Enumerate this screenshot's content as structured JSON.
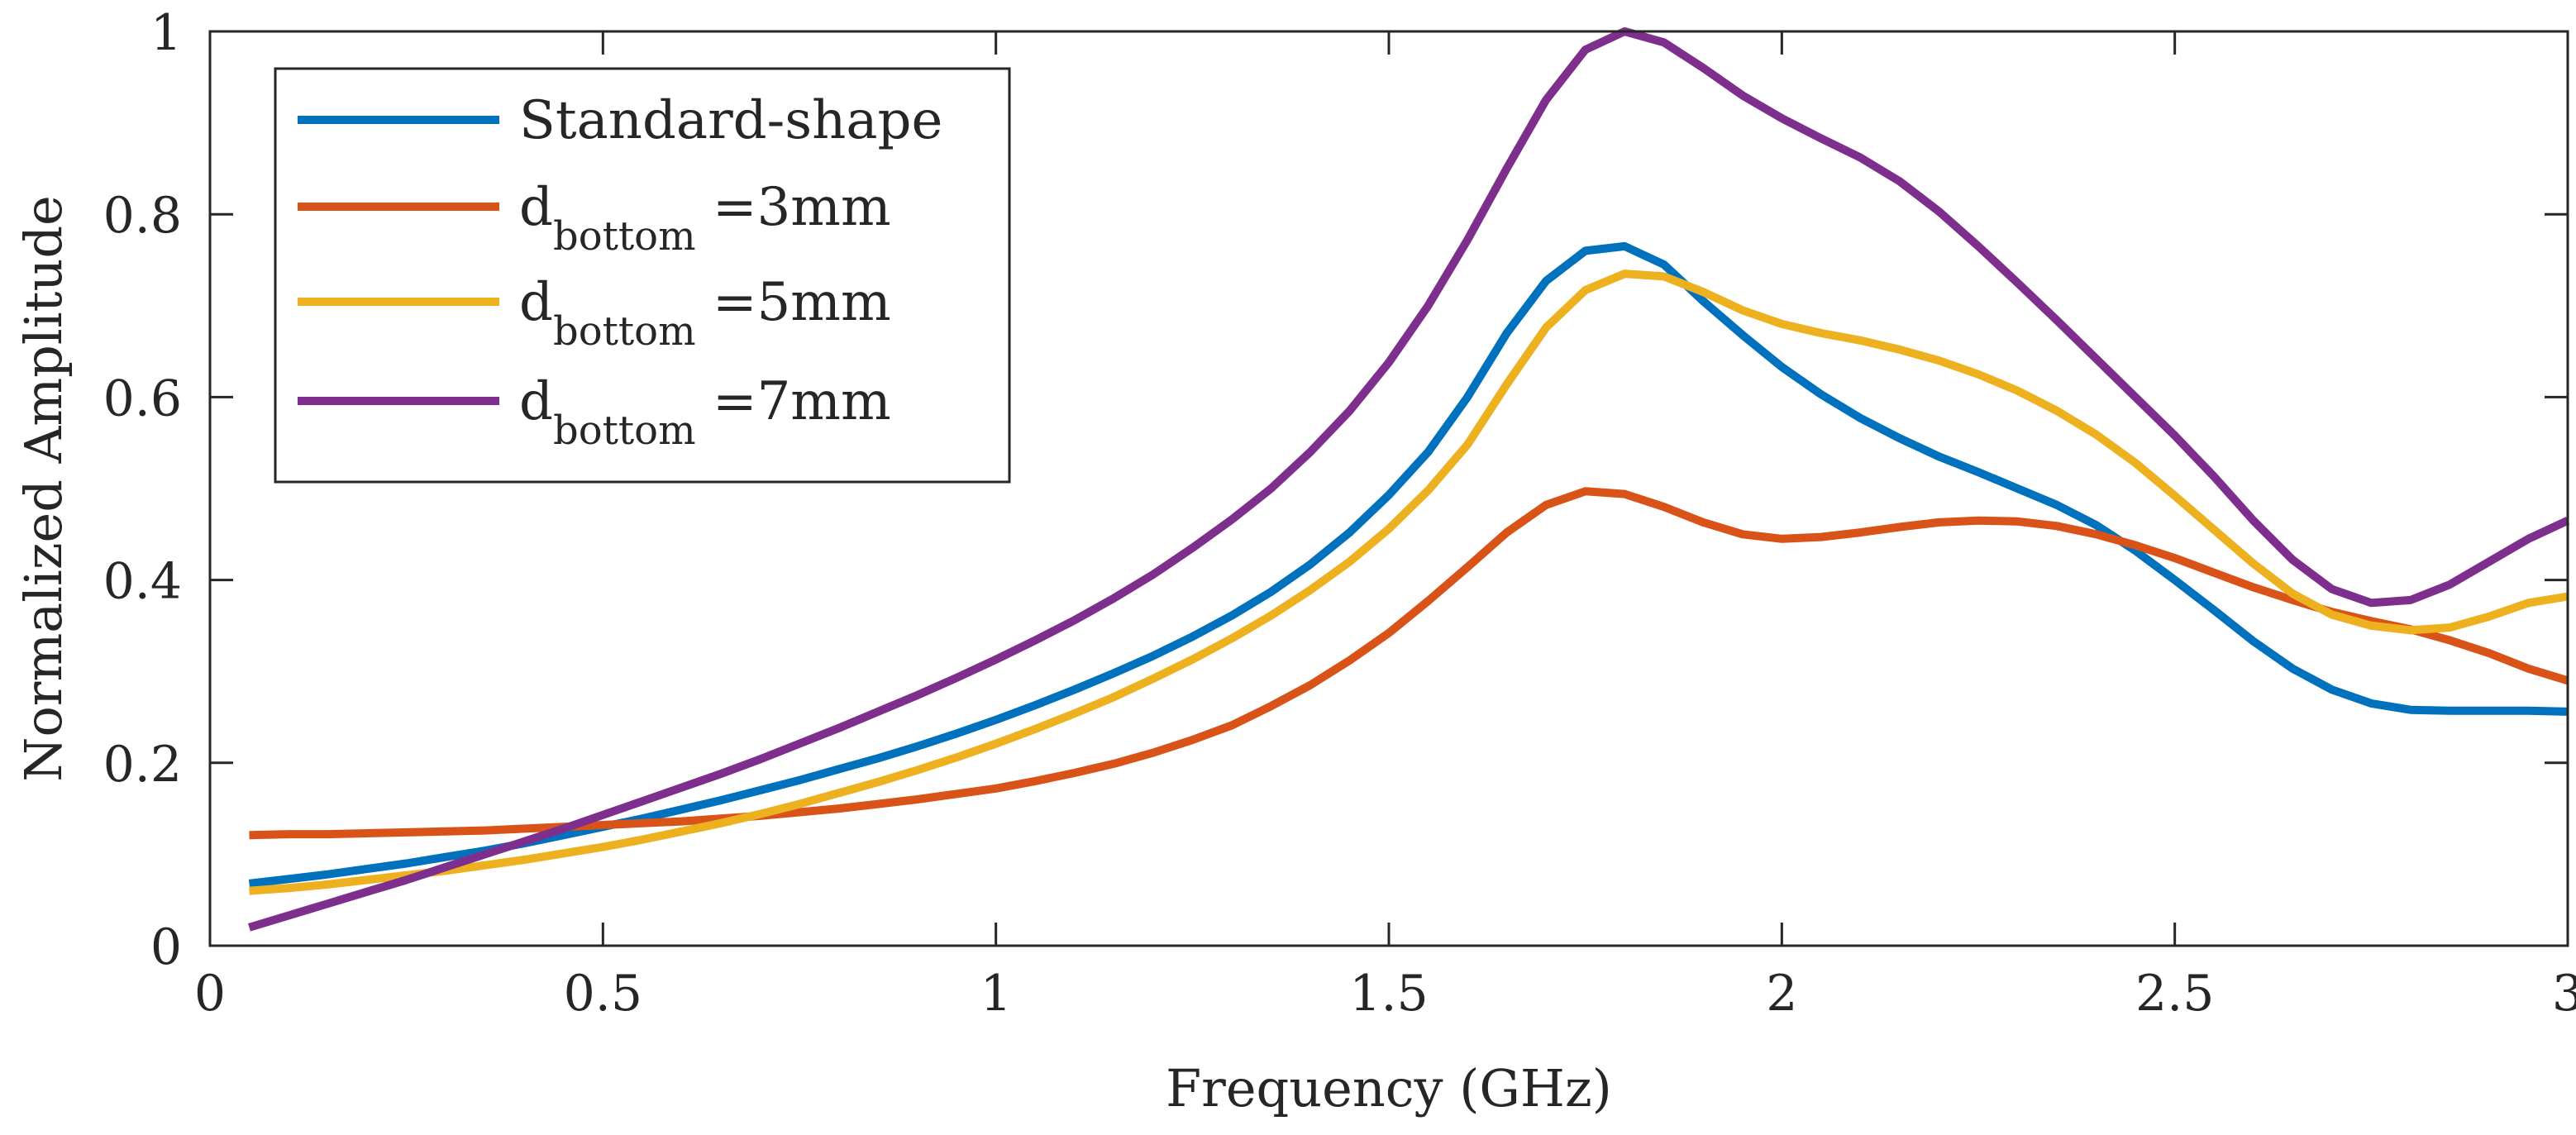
{
  "chart_data": {
    "type": "line",
    "title": "",
    "xlabel": "Frequency (GHz)",
    "ylabel": "Normalized Amplitude",
    "xlim": [
      0,
      3
    ],
    "ylim": [
      0,
      1
    ],
    "grid": false,
    "legend_position": "top-left",
    "x_ticks": [
      "0",
      "0.5",
      "1",
      "1.5",
      "2",
      "2.5",
      "3"
    ],
    "y_ticks": [
      "0",
      "0.2",
      "0.4",
      "0.6",
      "0.8",
      "1"
    ],
    "x": [
      0.05,
      0.1,
      0.15,
      0.2,
      0.25,
      0.3,
      0.35,
      0.4,
      0.45,
      0.5,
      0.55,
      0.6,
      0.65,
      0.7,
      0.75,
      0.8,
      0.85,
      0.9,
      0.95,
      1.0,
      1.05,
      1.1,
      1.15,
      1.2,
      1.25,
      1.3,
      1.35,
      1.4,
      1.45,
      1.5,
      1.55,
      1.6,
      1.65,
      1.7,
      1.75,
      1.8,
      1.85,
      1.9,
      1.95,
      2.0,
      2.05,
      2.1,
      2.15,
      2.2,
      2.25,
      2.3,
      2.35,
      2.4,
      2.45,
      2.5,
      2.55,
      2.6,
      2.65,
      2.7,
      2.75,
      2.8,
      2.85,
      2.9,
      2.95,
      3.0
    ],
    "series": [
      {
        "name": "Standard-shape",
        "legend_main": "Standard-shape",
        "legend_sub": "",
        "legend_suffix": "",
        "color": "#0072BD",
        "values": [
          0.068,
          0.073,
          0.078,
          0.084,
          0.09,
          0.097,
          0.104,
          0.112,
          0.121,
          0.13,
          0.139,
          0.149,
          0.159,
          0.17,
          0.181,
          0.193,
          0.205,
          0.218,
          0.232,
          0.247,
          0.263,
          0.28,
          0.298,
          0.317,
          0.338,
          0.361,
          0.387,
          0.417,
          0.452,
          0.493,
          0.54,
          0.6,
          0.67,
          0.727,
          0.76,
          0.765,
          0.745,
          0.705,
          0.668,
          0.633,
          0.603,
          0.577,
          0.555,
          0.535,
          0.518,
          0.5,
          0.482,
          0.46,
          0.432,
          0.4,
          0.367,
          0.333,
          0.303,
          0.28,
          0.265,
          0.258,
          0.257,
          0.257,
          0.257,
          0.256
        ]
      },
      {
        "name": "d_bottom =3mm",
        "legend_main": "d",
        "legend_sub": "bottom",
        "legend_suffix": " =3mm",
        "color": "#D95319",
        "values": [
          0.121,
          0.122,
          0.122,
          0.123,
          0.124,
          0.125,
          0.126,
          0.128,
          0.13,
          0.132,
          0.134,
          0.136,
          0.139,
          0.142,
          0.146,
          0.15,
          0.155,
          0.16,
          0.166,
          0.172,
          0.18,
          0.189,
          0.199,
          0.211,
          0.225,
          0.241,
          0.262,
          0.285,
          0.312,
          0.342,
          0.377,
          0.414,
          0.452,
          0.482,
          0.497,
          0.494,
          0.48,
          0.463,
          0.45,
          0.445,
          0.447,
          0.452,
          0.458,
          0.463,
          0.465,
          0.464,
          0.459,
          0.45,
          0.438,
          0.424,
          0.408,
          0.392,
          0.378,
          0.365,
          0.355,
          0.346,
          0.334,
          0.32,
          0.303,
          0.29
        ]
      },
      {
        "name": "d_bottom =5mm",
        "legend_main": "d",
        "legend_sub": "bottom",
        "legend_suffix": " =5mm",
        "color": "#EDB120",
        "values": [
          0.06,
          0.063,
          0.067,
          0.072,
          0.077,
          0.082,
          0.088,
          0.094,
          0.101,
          0.108,
          0.116,
          0.125,
          0.134,
          0.144,
          0.155,
          0.167,
          0.179,
          0.192,
          0.206,
          0.221,
          0.237,
          0.254,
          0.272,
          0.292,
          0.313,
          0.336,
          0.361,
          0.389,
          0.42,
          0.456,
          0.498,
          0.548,
          0.614,
          0.676,
          0.717,
          0.735,
          0.732,
          0.715,
          0.695,
          0.68,
          0.67,
          0.662,
          0.652,
          0.64,
          0.625,
          0.607,
          0.585,
          0.559,
          0.528,
          0.492,
          0.455,
          0.418,
          0.385,
          0.362,
          0.35,
          0.345,
          0.348,
          0.36,
          0.375,
          0.382
        ]
      },
      {
        "name": "d_bottom =7mm",
        "legend_main": "d",
        "legend_sub": "bottom",
        "legend_suffix": " =7mm",
        "color": "#7E2F8E",
        "values": [
          0.02,
          0.033,
          0.046,
          0.059,
          0.072,
          0.086,
          0.1,
          0.114,
          0.128,
          0.143,
          0.158,
          0.173,
          0.188,
          0.204,
          0.221,
          0.238,
          0.256,
          0.274,
          0.293,
          0.313,
          0.334,
          0.356,
          0.38,
          0.406,
          0.435,
          0.466,
          0.5,
          0.54,
          0.585,
          0.638,
          0.7,
          0.772,
          0.85,
          0.925,
          0.98,
          1.0,
          0.988,
          0.96,
          0.93,
          0.905,
          0.883,
          0.862,
          0.836,
          0.803,
          0.765,
          0.725,
          0.684,
          0.642,
          0.6,
          0.558,
          0.513,
          0.465,
          0.422,
          0.39,
          0.375,
          0.378,
          0.395,
          0.42,
          0.445,
          0.465
        ]
      }
    ]
  }
}
